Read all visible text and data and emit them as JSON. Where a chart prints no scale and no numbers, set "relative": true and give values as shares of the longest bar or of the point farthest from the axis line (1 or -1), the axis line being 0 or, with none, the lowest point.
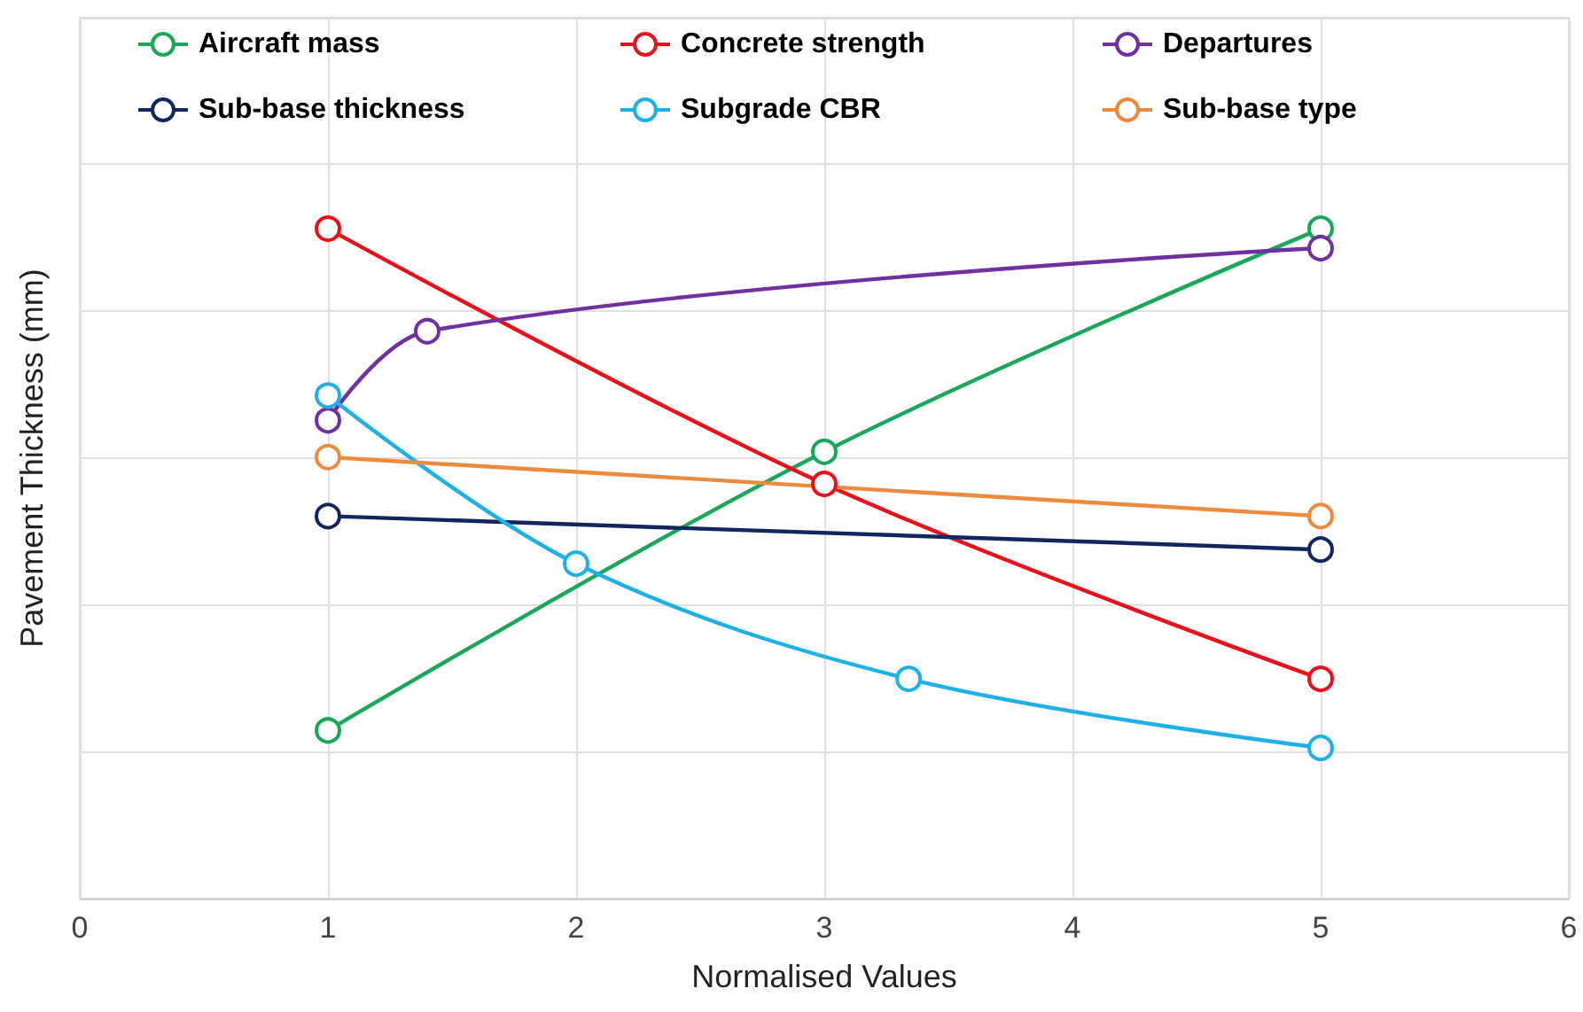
{
  "chart_data": {
    "type": "line",
    "relative": true,
    "xlabel": "Normalised Values",
    "ylabel": "Pavement Thickness (mm)",
    "xlim": [
      0,
      6
    ],
    "xticks": [
      0,
      1,
      2,
      3,
      4,
      5,
      6
    ],
    "grid": true,
    "legend": "top",
    "marker": "circle",
    "series": [
      {
        "name": "Aircraft mass",
        "color": "#1aa75a",
        "x": [
          1,
          3,
          5
        ],
        "values": [
          0.251,
          0.667,
          1
        ]
      },
      {
        "name": "Concrete strength",
        "color": "#e8111b",
        "x": [
          1,
          3,
          5
        ],
        "values": [
          1,
          0.619,
          0.328
        ]
      },
      {
        "name": "Departures",
        "color": "#7030a0",
        "x": [
          1,
          1.4,
          5
        ],
        "values": [
          0.714,
          0.847,
          0.971
        ]
      },
      {
        "name": "Sub-base thickness",
        "color": "#12265e",
        "x": [
          1,
          5
        ],
        "values": [
          0.571,
          0.521
        ]
      },
      {
        "name": "Subgrade CBR",
        "color": "#1fb1e6",
        "x": [
          1,
          2,
          3.34,
          5
        ],
        "values": [
          0.751,
          0.5,
          0.328,
          0.225
        ]
      },
      {
        "name": "Sub-base type",
        "color": "#ee8a3e",
        "x": [
          1,
          5
        ],
        "values": [
          0.659,
          0.571
        ]
      }
    ]
  }
}
